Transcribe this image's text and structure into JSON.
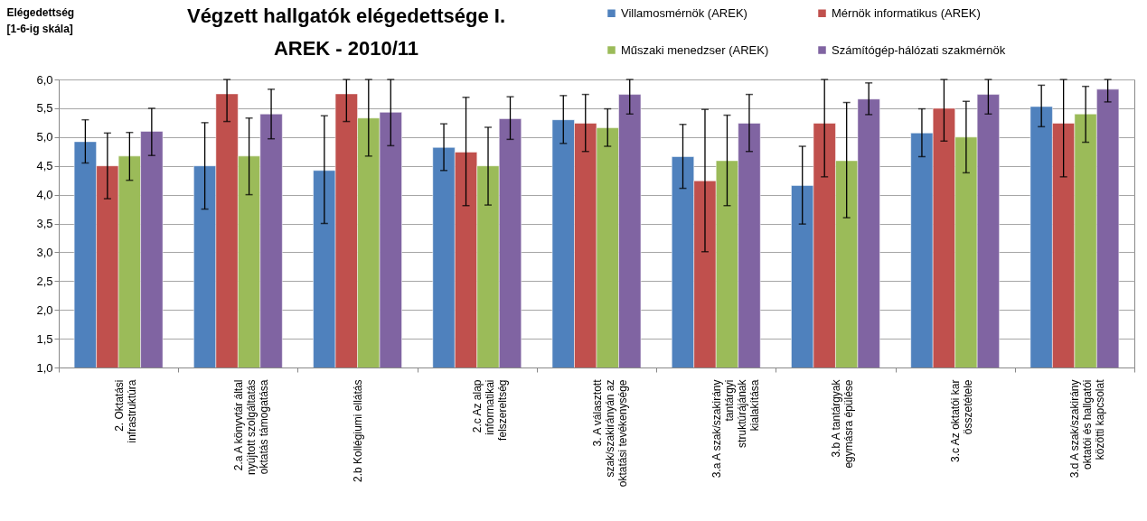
{
  "chart_data": {
    "type": "bar",
    "title": "Végzett hallgatók elégedettsége I.\nAREK - 2010/11",
    "ylabel": "Elégedettség\n[1-6-ig skála]",
    "categories": [
      "2. Oktatási\ninfrastruktúra",
      "2.a  A könyvtár által\nnyújtott szolgáltatás\noktatás támogatása",
      "2.b  Kollégiumi ellátás",
      "2.c  Az alap\ninformatikai\nfelszereltség",
      "3. A választott\nszak/szakirányán az\noktatási tevékenysége",
      "3.a  A  szak/szakirány\ntantárgyi\nstruktúrájának\nkialakítása",
      "3.b  A tantárgyak\negymásra épülése",
      "3.c  Az oktatói kar\nösszetétele",
      "3.d  A szak/szakirány\noktatói és hallgatói\nközötti kapcsolat"
    ],
    "series": [
      {
        "name": "Villamosmérnök (AREK)",
        "color": "#4f81bd",
        "values": [
          4.92,
          4.5,
          4.42,
          4.82,
          5.3,
          4.66,
          4.16,
          5.07,
          5.53
        ],
        "errors": [
          [
            4.55,
            5.3
          ],
          [
            3.75,
            5.25
          ],
          [
            3.5,
            5.37
          ],
          [
            4.42,
            5.23
          ],
          [
            4.89,
            5.72
          ],
          [
            4.11,
            5.22
          ],
          [
            3.49,
            4.84
          ],
          [
            4.66,
            5.49
          ],
          [
            5.18,
            5.9
          ]
        ]
      },
      {
        "name": "Mérnök informatikus (AREK)",
        "color": "#c0504d",
        "values": [
          4.5,
          5.75,
          5.75,
          4.74,
          5.24,
          4.24,
          5.24,
          5.5,
          5.24
        ],
        "errors": [
          [
            3.93,
            5.07
          ],
          [
            5.27,
            6.0
          ],
          [
            5.27,
            6.0
          ],
          [
            3.81,
            5.69
          ],
          [
            4.75,
            5.74
          ],
          [
            3.01,
            5.48
          ],
          [
            4.31,
            6.0
          ],
          [
            4.93,
            6.0
          ],
          [
            4.31,
            6.0
          ]
        ]
      },
      {
        "name": "Műszaki menedzser (AREK)",
        "color": "#9bbb59",
        "values": [
          4.67,
          4.67,
          5.33,
          4.5,
          5.16,
          4.59,
          4.59,
          5.0,
          5.4
        ],
        "errors": [
          [
            4.25,
            5.08
          ],
          [
            4.0,
            5.33
          ],
          [
            4.67,
            6.0
          ],
          [
            3.82,
            5.17
          ],
          [
            4.84,
            5.49
          ],
          [
            3.81,
            5.38
          ],
          [
            3.6,
            5.6
          ],
          [
            4.38,
            5.62
          ],
          [
            4.91,
            5.88
          ]
        ]
      },
      {
        "name": "Számítógép-hálózati szakmérnök",
        "color": "#8064a2",
        "values": [
          5.1,
          5.4,
          5.43,
          5.32,
          5.74,
          5.24,
          5.66,
          5.74,
          5.83
        ],
        "errors": [
          [
            4.68,
            5.5
          ],
          [
            4.97,
            5.83
          ],
          [
            4.85,
            6.0
          ],
          [
            4.96,
            5.7
          ],
          [
            5.4,
            6.0
          ],
          [
            4.75,
            5.74
          ],
          [
            5.39,
            5.94
          ],
          [
            5.4,
            6.0
          ],
          [
            5.61,
            6.0
          ]
        ]
      }
    ],
    "ylim": [
      1.0,
      6.0
    ],
    "yticks": [
      {
        "value": 1.0,
        "label": "1,0"
      },
      {
        "value": 1.5,
        "label": "1,5"
      },
      {
        "value": 2.0,
        "label": "2,0"
      },
      {
        "value": 2.5,
        "label": "2,5"
      },
      {
        "value": 3.0,
        "label": "3,0"
      },
      {
        "value": 3.5,
        "label": "3,5"
      },
      {
        "value": 4.0,
        "label": "4,0"
      },
      {
        "value": 4.5,
        "label": "4,5"
      },
      {
        "value": 5.0,
        "label": "5,0"
      },
      {
        "value": 5.5,
        "label": "5,5"
      },
      {
        "value": 6.0,
        "label": "6,0"
      }
    ],
    "grid": "y",
    "legend": "top right"
  }
}
